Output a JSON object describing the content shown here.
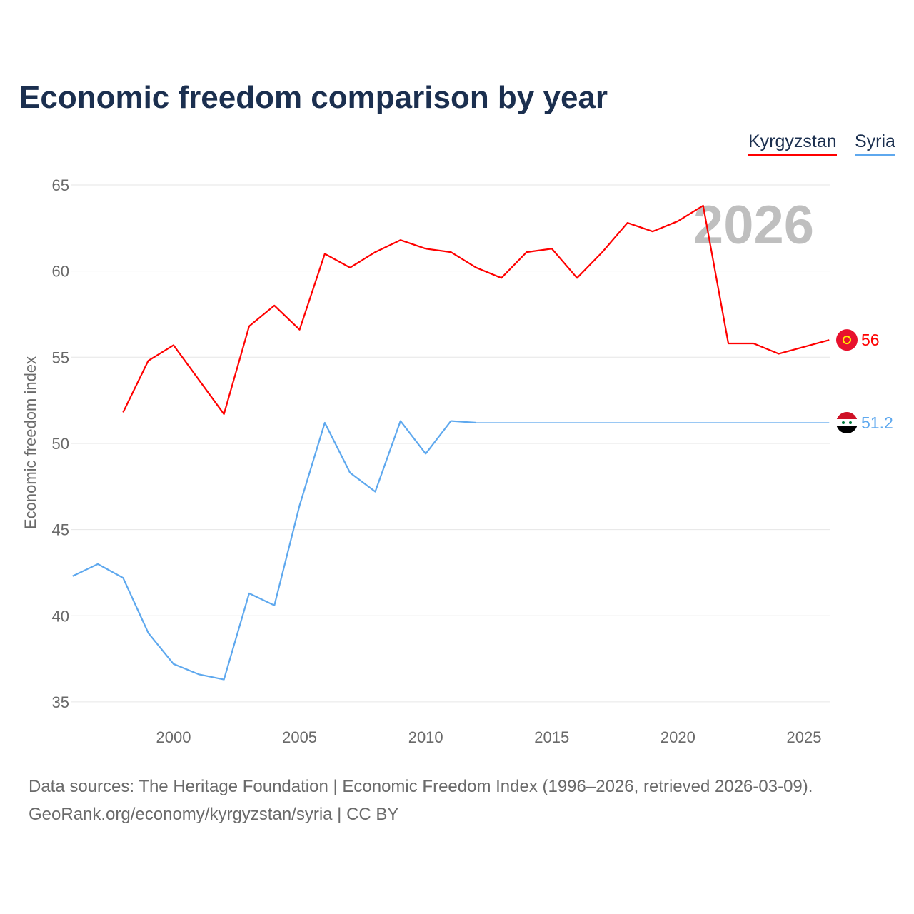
{
  "title": "Economic freedom comparison by year",
  "footer": {
    "line1": "Data sources: The Heritage Foundation | Economic Freedom Index (1996–2026, retrieved 2026-03-09).",
    "line2": "GeoRank.org/economy/kyrgyzstan/syria | CC BY"
  },
  "chart_data": {
    "type": "line",
    "title": "Economic freedom comparison by year",
    "ylabel": "Economic freedom index",
    "xlabel": "",
    "ylim": [
      35,
      65
    ],
    "xlim": [
      1996,
      2026
    ],
    "yticks": [
      35,
      40,
      45,
      50,
      55,
      60,
      65
    ],
    "xticks": [
      2000,
      2005,
      2010,
      2015,
      2020,
      2025
    ],
    "grid": true,
    "legend_position": "top-right",
    "year_watermark": "2026",
    "series": [
      {
        "name": "Kyrgyzstan",
        "color": "#ff0000",
        "end_label": "56",
        "x": [
          1998,
          1999,
          2000,
          2001,
          2002,
          2003,
          2004,
          2005,
          2006,
          2007,
          2008,
          2009,
          2010,
          2011,
          2012,
          2013,
          2014,
          2015,
          2016,
          2017,
          2018,
          2019,
          2020,
          2021,
          2022,
          2023,
          2024,
          2025,
          2026
        ],
        "values": [
          51.8,
          54.8,
          55.7,
          53.7,
          51.7,
          56.8,
          58.0,
          56.6,
          61.0,
          60.2,
          61.1,
          61.8,
          61.3,
          61.1,
          60.2,
          59.6,
          61.1,
          61.3,
          59.6,
          61.1,
          62.8,
          62.3,
          62.9,
          63.8,
          55.8,
          55.8,
          55.2,
          55.6,
          56.0
        ]
      },
      {
        "name": "Syria",
        "color": "#5ea8ee",
        "end_label": "51.2",
        "x": [
          1996,
          1997,
          1998,
          1999,
          2000,
          2001,
          2002,
          2003,
          2004,
          2005,
          2006,
          2007,
          2008,
          2009,
          2010,
          2011,
          2012
        ],
        "values": [
          42.3,
          43.0,
          42.2,
          39.0,
          37.2,
          36.6,
          36.3,
          41.3,
          40.6,
          46.4,
          51.2,
          48.3,
          47.2,
          51.3,
          49.4,
          51.3,
          51.2
        ],
        "carried_forward": {
          "x": [
            2012,
            2026
          ],
          "values": [
            51.2,
            51.2
          ]
        }
      }
    ]
  }
}
